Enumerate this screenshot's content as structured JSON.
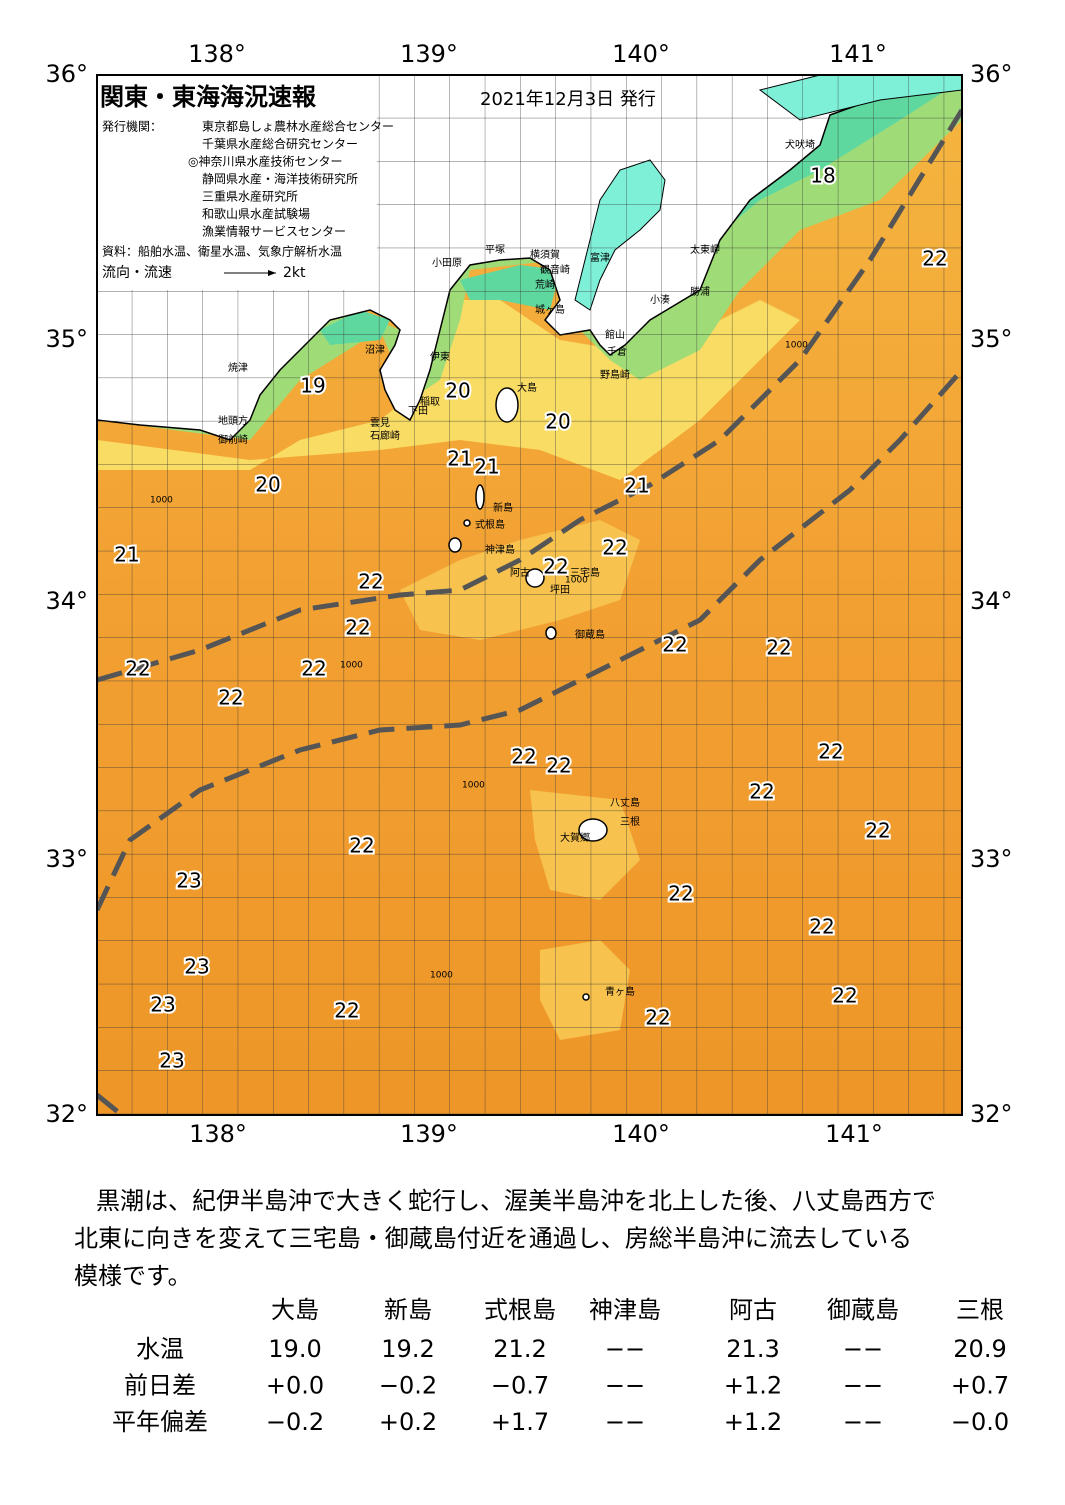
{
  "header": {
    "title": "関東・東海海況速報",
    "date": "2021年12月3日 発行",
    "issuer_label": "発行機関：",
    "issuers": [
      "東京都島しょ農林水産総合センター",
      "千葉県水産総合研究センター",
      "◎神奈川県水産技術センター",
      "静岡県水産・海洋技術研究所",
      "三重県水産研究所",
      "和歌山県水産試験場",
      "漁業情報サービスセンター"
    ],
    "source": "資料：船舶水温、衛星水温、気象庁解析水温",
    "legend": "流向・流速",
    "legend_scale": "2kt"
  },
  "axes": {
    "lon_top": [
      "138°",
      "139°",
      "140°",
      "141°"
    ],
    "lon_bottom": [
      "138°",
      "139°",
      "140°",
      "141°"
    ],
    "lat_left": [
      "36°",
      "35°",
      "34°",
      "33°",
      "32°"
    ],
    "lat_right": [
      "36°",
      "35°",
      "34°",
      "33°",
      "32°"
    ]
  },
  "temperatures": [
    18,
    22,
    19,
    20,
    20,
    21,
    21,
    20,
    21,
    21,
    22,
    22,
    22,
    22,
    22,
    22,
    22,
    22,
    22,
    22,
    22,
    22,
    22,
    22,
    22,
    23,
    22,
    22,
    23,
    23,
    22,
    22,
    22,
    23
  ],
  "places": [
    "犬吠埼",
    "太東岬",
    "勝浦",
    "小湊",
    "館山",
    "千倉",
    "野島崎",
    "富津",
    "横須賀",
    "観音崎",
    "荒崎",
    "城ヶ島",
    "平塚",
    "小田原",
    "沼津",
    "伊東",
    "稲取",
    "下田",
    "雲見",
    "石廊崎",
    "焼津",
    "地頭方",
    "御前崎",
    "大島",
    "新島",
    "式根島",
    "神津島",
    "三宅島",
    "阿古",
    "坪田",
    "御蔵島",
    "八丈島",
    "三根",
    "大賀郷",
    "青ヶ島"
  ],
  "depth_labels": [
    "1000",
    "1000",
    "1000",
    "1000",
    "1000",
    "1000"
  ],
  "summary": [
    "黒潮は、紀伊半島沖で大きく蛇行し、渥美半島沖を北上した後、八丈島西方で",
    "北東に向きを変えて三宅島・御蔵島付近を通過し、房総半島沖に流去している",
    "模様です。"
  ],
  "table": {
    "columns": [
      "大島",
      "新島",
      "式根島",
      "神津島",
      "阿古",
      "御蔵島",
      "三根"
    ],
    "rows": [
      {
        "label": "水温",
        "cells": [
          "19.0",
          "19.2",
          "21.2",
          "−−",
          "21.3",
          "−−",
          "20.9"
        ]
      },
      {
        "label": "前日差",
        "cells": [
          "+0.0",
          "−0.2",
          "−0.7",
          "−−",
          "+1.2",
          "−−",
          "+0.7"
        ]
      },
      {
        "label": "平年偏差",
        "cells": [
          "−0.2",
          "+0.2",
          "+1.7",
          "−−",
          "+1.2",
          "−−",
          "−0.0"
        ]
      }
    ]
  }
}
